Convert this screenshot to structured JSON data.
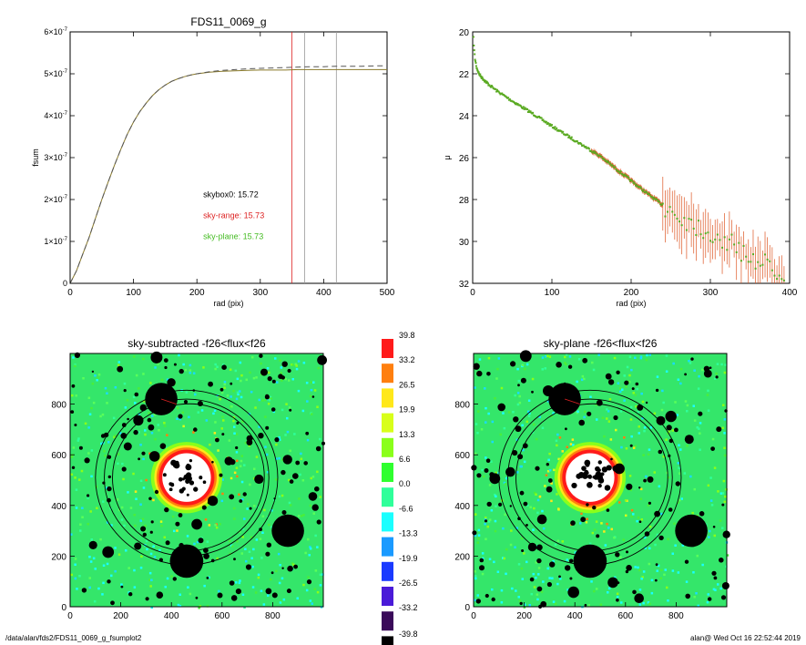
{
  "chart_data": [
    {
      "type": "line",
      "title": "FDS11_0069_g",
      "xlabel": "rad (pix)",
      "ylabel": "fsum",
      "xlim": [
        0,
        500
      ],
      "ylim": [
        0,
        6e-07
      ],
      "xticks": [
        "0",
        "100",
        "200",
        "300",
        "400",
        "500"
      ],
      "yticks": [
        {
          "v": 0,
          "m": "0",
          "e": ""
        },
        {
          "v": 1e-07,
          "m": "1×10",
          "e": "-7"
        },
        {
          "v": 2e-07,
          "m": "2×10",
          "e": "-7"
        },
        {
          "v": 3e-07,
          "m": "3×10",
          "e": "-7"
        },
        {
          "v": 4e-07,
          "m": "4×10",
          "e": "-7"
        },
        {
          "v": 5e-07,
          "m": "5×10",
          "e": "-7"
        },
        {
          "v": 6e-07,
          "m": "6×10",
          "e": "-7"
        }
      ],
      "x": [
        0,
        10,
        20,
        30,
        40,
        50,
        60,
        70,
        80,
        90,
        100,
        110,
        120,
        130,
        140,
        150,
        160,
        170,
        180,
        190,
        200,
        220,
        240,
        260,
        280,
        300,
        320,
        340,
        360,
        380,
        400,
        420,
        440,
        460,
        480,
        500
      ],
      "series": [
        {
          "values": [
            0,
            3e-08,
            7e-08,
            1.1e-07,
            1.55e-07,
            2e-07,
            2.42e-07,
            2.82e-07,
            3.2e-07,
            3.55e-07,
            3.85e-07,
            4.1e-07,
            4.3e-07,
            4.48e-07,
            4.62e-07,
            4.73e-07,
            4.82e-07,
            4.88e-07,
            4.93e-07,
            4.97e-07,
            5e-07,
            5.04e-07,
            5.06e-07,
            5.07e-07,
            5.08e-07,
            5.09e-07,
            5.09e-07,
            5.09e-07,
            5.1e-07,
            5.1e-07,
            5.1e-07,
            5.1e-07,
            5.1e-07,
            5.1e-07,
            5.1e-07,
            5.1e-07
          ],
          "color": "#8a7a2a"
        },
        {
          "values": [
            0,
            3e-08,
            7e-08,
            1.1e-07,
            1.55e-07,
            2e-07,
            2.42e-07,
            2.82e-07,
            3.2e-07,
            3.55e-07,
            3.85e-07,
            4.1e-07,
            4.3e-07,
            4.48e-07,
            4.62e-07,
            4.73e-07,
            4.82e-07,
            4.88e-07,
            4.93e-07,
            4.97e-07,
            5e-07,
            5.05e-07,
            5.08e-07,
            5.1e-07,
            5.12e-07,
            5.13e-07,
            5.14e-07,
            5.15e-07,
            5.16e-07,
            5.17e-07,
            5.17e-07,
            5.18e-07,
            5.18e-07,
            5.18e-07,
            5.19e-07,
            5.19e-07
          ],
          "color": "#555555",
          "dash": true
        }
      ],
      "vlines": [
        {
          "x": 350,
          "color": "#dd2222"
        },
        {
          "x": 370,
          "color": "#999999"
        },
        {
          "x": 420,
          "color": "#999999"
        }
      ],
      "annotations": [
        {
          "text": "skybox0: 15.72",
          "color": "#000000",
          "x": 210,
          "y": 2.05e-07
        },
        {
          "text": "sky-range: 15.73",
          "color": "#dd2222",
          "x": 210,
          "y": 1.55e-07
        },
        {
          "text": "sky-plane: 15.73",
          "color": "#44bb22",
          "x": 210,
          "y": 1.05e-07
        }
      ]
    },
    {
      "type": "scatter",
      "title": "",
      "xlabel": "rad (pix)",
      "ylabel": "μ",
      "xlim": [
        0,
        400
      ],
      "ylim": [
        32,
        20
      ],
      "xticks": [
        "0",
        "100",
        "200",
        "300",
        "400"
      ],
      "yticks": [
        "20",
        "22",
        "24",
        "26",
        "28",
        "30",
        "32"
      ],
      "profile_x": [
        1,
        2,
        3,
        5,
        8,
        12,
        20,
        30,
        50,
        80,
        100,
        130,
        160,
        190,
        220,
        245,
        260,
        280,
        300,
        320,
        340,
        360,
        380,
        395
      ],
      "profile_y": [
        20.3,
        20.9,
        21.3,
        21.7,
        22.0,
        22.2,
        22.5,
        22.8,
        23.3,
        24.0,
        24.5,
        25.2,
        25.9,
        26.8,
        27.7,
        28.4,
        28.8,
        29.2,
        29.6,
        30.0,
        30.5,
        30.9,
        31.3,
        31.6
      ],
      "colors": {
        "points": "#5aaa22",
        "errors": "#dd5522"
      }
    },
    {
      "type": "heatmap",
      "title": "sky-subtracted -f26<flux<f26",
      "xlim": [
        0,
        1000
      ],
      "ylim": [
        0,
        1000
      ],
      "xticks": [
        "0",
        "200",
        "400",
        "600",
        "800"
      ],
      "yticks": [
        "0",
        "200",
        "400",
        "600",
        "800"
      ]
    },
    {
      "type": "heatmap",
      "title": "sky-plane -f26<flux<f26",
      "xlim": [
        0,
        1000
      ],
      "ylim": [
        0,
        1000
      ],
      "xticks": [
        "0",
        "200",
        "400",
        "600",
        "800"
      ],
      "yticks": [
        "0",
        "200",
        "400",
        "600",
        "800"
      ]
    }
  ],
  "colorbar": {
    "labels": [
      "39.8",
      "33.2",
      "26.5",
      "19.9",
      "13.3",
      "6.6",
      "0.0",
      "-6.6",
      "-13.3",
      "-19.9",
      "-26.5",
      "-33.2",
      "-39.8"
    ],
    "colors": [
      "#ff1a1a",
      "#ff7f0e",
      "#ffe81a",
      "#d8ff1a",
      "#8aff1a",
      "#2fff2f",
      "#2fff9a",
      "#1affff",
      "#1a9aff",
      "#1a3aff",
      "#4a1ad8",
      "#3a0a5a",
      "#000000"
    ]
  },
  "footer": {
    "left": "/data/alan/fds2/FDS11_0069_g_fsumplot2",
    "right": "alan@  Wed Oct 16 22:52:44 2019"
  }
}
